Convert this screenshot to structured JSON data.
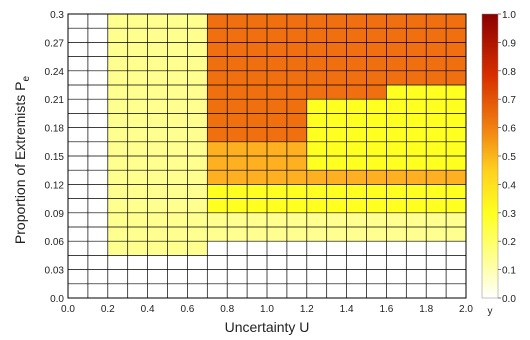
{
  "chart_data": {
    "type": "heatmap",
    "xlabel": "Uncertainty U",
    "ylabel_main": "Proportion of Extremists P",
    "ylabel_sub": "e",
    "x_ticks": [
      "0.0",
      "0.2",
      "0.4",
      "0.6",
      "0.8",
      "1.0",
      "1.2",
      "1.4",
      "1.6",
      "1.8",
      "2.0"
    ],
    "y_ticks": [
      "0.0",
      "0.03",
      "0.06",
      "0.09",
      "0.12",
      "0.15",
      "0.18",
      "0.21",
      "0.24",
      "0.27",
      "0.3"
    ],
    "xlim": [
      0,
      2
    ],
    "ylim": [
      0,
      0.3
    ],
    "colorbar": {
      "label": "y",
      "range": [
        0,
        1
      ],
      "ticks": [
        "1.0",
        "0.9",
        "0.8",
        "0.7",
        "0.6",
        "0.5",
        "0.4",
        "0.3",
        "0.2",
        "0.1",
        "0.0"
      ]
    },
    "grid": true,
    "colormap": [
      "#ffffff",
      "#ffff90",
      "#ffff20",
      "#ffb020",
      "#f07010",
      "#d02000",
      "#8b0000"
    ]
  }
}
